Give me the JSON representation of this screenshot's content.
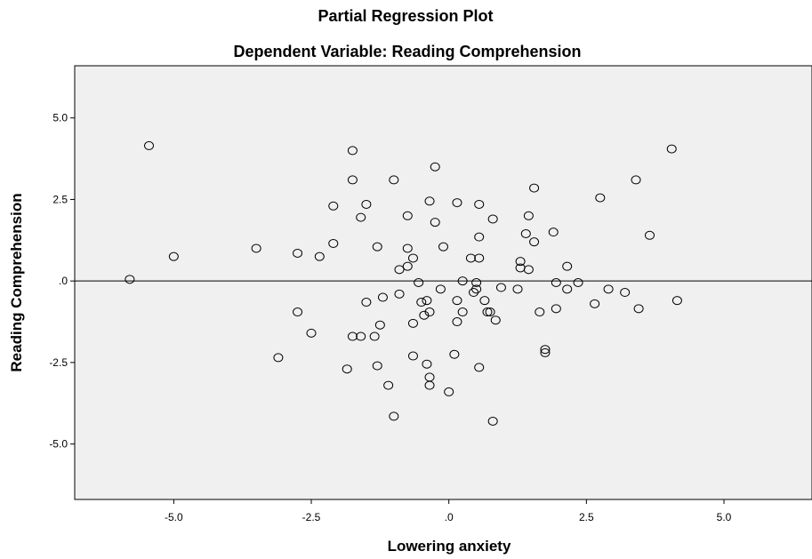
{
  "chart_data": {
    "type": "scatter",
    "title": "Partial Regression Plot",
    "subtitle": "Dependent Variable: Reading Comprehension",
    "xlabel": "Lowering anxiety",
    "ylabel": "Reading Comprehension",
    "xlim": [
      -6.8,
      6.6
    ],
    "ylim": [
      -6.7,
      6.6
    ],
    "x_ticks": [
      {
        "value": -5.0,
        "label": "-5.0"
      },
      {
        "value": -2.5,
        "label": "-2.5"
      },
      {
        "value": 0.0,
        "label": ".0"
      },
      {
        "value": 2.5,
        "label": "2.5"
      },
      {
        "value": 5.0,
        "label": "5.0"
      }
    ],
    "y_ticks": [
      {
        "value": 5.0,
        "label": "5.0"
      },
      {
        "value": 2.5,
        "label": "2.5"
      },
      {
        "value": 0.0,
        "label": ".0"
      },
      {
        "value": -2.5,
        "label": "-2.5"
      },
      {
        "value": -5.0,
        "label": "-5.0"
      }
    ],
    "reference_line_y": 0.0,
    "grid": false,
    "plot_background": "#f0f0f0",
    "marker_color": "#000000",
    "points": [
      {
        "x": -5.8,
        "y": 0.05
      },
      {
        "x": -5.45,
        "y": 4.15
      },
      {
        "x": -5.0,
        "y": 0.75
      },
      {
        "x": -3.5,
        "y": 1.0
      },
      {
        "x": -3.1,
        "y": -2.35
      },
      {
        "x": -2.75,
        "y": 0.85
      },
      {
        "x": -2.75,
        "y": -0.95
      },
      {
        "x": -2.5,
        "y": -1.6
      },
      {
        "x": -2.35,
        "y": 0.75
      },
      {
        "x": -2.1,
        "y": 2.3
      },
      {
        "x": -2.1,
        "y": 1.15
      },
      {
        "x": -1.85,
        "y": -2.7
      },
      {
        "x": -1.75,
        "y": 4.0
      },
      {
        "x": -1.75,
        "y": 3.1
      },
      {
        "x": -1.75,
        "y": -1.7
      },
      {
        "x": -1.6,
        "y": 1.95
      },
      {
        "x": -1.6,
        "y": -1.7
      },
      {
        "x": -1.5,
        "y": 2.35
      },
      {
        "x": -1.5,
        "y": -0.65
      },
      {
        "x": -1.35,
        "y": -1.7
      },
      {
        "x": -1.3,
        "y": 1.05
      },
      {
        "x": -1.3,
        "y": -2.6
      },
      {
        "x": -1.25,
        "y": -1.35
      },
      {
        "x": -1.2,
        "y": -0.5
      },
      {
        "x": -1.1,
        "y": -3.2
      },
      {
        "x": -1.0,
        "y": 3.1
      },
      {
        "x": -1.0,
        "y": -4.15
      },
      {
        "x": -0.9,
        "y": 0.35
      },
      {
        "x": -0.9,
        "y": -0.4
      },
      {
        "x": -0.75,
        "y": 2.0
      },
      {
        "x": -0.75,
        "y": 1.0
      },
      {
        "x": -0.75,
        "y": 0.45
      },
      {
        "x": -0.65,
        "y": 0.7
      },
      {
        "x": -0.65,
        "y": -1.3
      },
      {
        "x": -0.65,
        "y": -2.3
      },
      {
        "x": -0.55,
        "y": -0.05
      },
      {
        "x": -0.5,
        "y": -0.65
      },
      {
        "x": -0.45,
        "y": -1.05
      },
      {
        "x": -0.4,
        "y": -0.6
      },
      {
        "x": -0.4,
        "y": -2.55
      },
      {
        "x": -0.35,
        "y": 2.45
      },
      {
        "x": -0.35,
        "y": -0.95
      },
      {
        "x": -0.35,
        "y": -2.95
      },
      {
        "x": -0.35,
        "y": -3.2
      },
      {
        "x": -0.25,
        "y": 3.5
      },
      {
        "x": -0.25,
        "y": 1.8
      },
      {
        "x": -0.15,
        "y": -0.25
      },
      {
        "x": -0.1,
        "y": 1.05
      },
      {
        "x": 0.0,
        "y": -3.4
      },
      {
        "x": 0.1,
        "y": -2.25
      },
      {
        "x": 0.15,
        "y": 2.4
      },
      {
        "x": 0.15,
        "y": -0.6
      },
      {
        "x": 0.15,
        "y": -1.25
      },
      {
        "x": 0.25,
        "y": 0.0
      },
      {
        "x": 0.25,
        "y": -0.95
      },
      {
        "x": 0.4,
        "y": 0.7
      },
      {
        "x": 0.45,
        "y": -0.35
      },
      {
        "x": 0.5,
        "y": -0.05
      },
      {
        "x": 0.5,
        "y": -0.25
      },
      {
        "x": 0.55,
        "y": 2.35
      },
      {
        "x": 0.55,
        "y": 1.35
      },
      {
        "x": 0.55,
        "y": 0.7
      },
      {
        "x": 0.55,
        "y": -2.65
      },
      {
        "x": 0.65,
        "y": -0.6
      },
      {
        "x": 0.7,
        "y": -0.95
      },
      {
        "x": 0.75,
        "y": -0.95
      },
      {
        "x": 0.8,
        "y": 1.9
      },
      {
        "x": 0.8,
        "y": -4.3
      },
      {
        "x": 0.85,
        "y": -1.2
      },
      {
        "x": 0.95,
        "y": -0.2
      },
      {
        "x": 1.25,
        "y": -0.25
      },
      {
        "x": 1.3,
        "y": 0.6
      },
      {
        "x": 1.3,
        "y": 0.4
      },
      {
        "x": 1.4,
        "y": 1.45
      },
      {
        "x": 1.45,
        "y": 2.0
      },
      {
        "x": 1.45,
        "y": 0.35
      },
      {
        "x": 1.55,
        "y": 2.85
      },
      {
        "x": 1.55,
        "y": 1.2
      },
      {
        "x": 1.65,
        "y": -0.95
      },
      {
        "x": 1.75,
        "y": -2.1
      },
      {
        "x": 1.75,
        "y": -2.2
      },
      {
        "x": 1.9,
        "y": 1.5
      },
      {
        "x": 1.95,
        "y": -0.05
      },
      {
        "x": 1.95,
        "y": -0.85
      },
      {
        "x": 2.15,
        "y": 0.45
      },
      {
        "x": 2.15,
        "y": -0.25
      },
      {
        "x": 2.35,
        "y": -0.05
      },
      {
        "x": 2.65,
        "y": -0.7
      },
      {
        "x": 2.75,
        "y": 2.55
      },
      {
        "x": 2.9,
        "y": -0.25
      },
      {
        "x": 3.2,
        "y": -0.35
      },
      {
        "x": 3.4,
        "y": 3.1
      },
      {
        "x": 3.45,
        "y": -0.85
      },
      {
        "x": 3.65,
        "y": 1.4
      },
      {
        "x": 4.05,
        "y": 4.05
      },
      {
        "x": 4.15,
        "y": -0.6
      }
    ]
  }
}
